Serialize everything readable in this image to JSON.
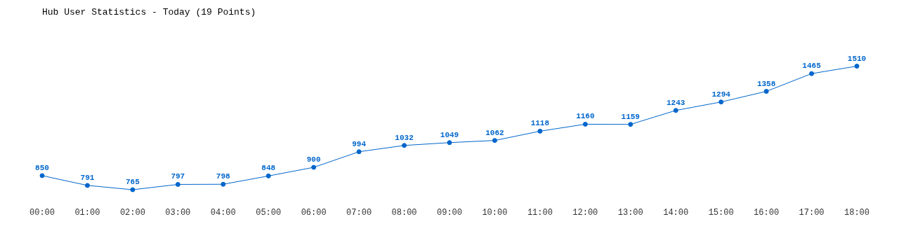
{
  "chart_data": {
    "type": "line",
    "title": "Hub User Statistics - Today (19 Points)",
    "categories": [
      "00:00",
      "01:00",
      "02:00",
      "03:00",
      "04:00",
      "05:00",
      "06:00",
      "07:00",
      "08:00",
      "09:00",
      "10:00",
      "11:00",
      "12:00",
      "13:00",
      "14:00",
      "15:00",
      "16:00",
      "17:00",
      "18:00"
    ],
    "series": [
      {
        "color": "#0066cc",
        "values": [
          850,
          791,
          765,
          797,
          798,
          848,
          900,
          994,
          1032,
          1049,
          1062,
          1118,
          1160,
          1159,
          1243,
          1294,
          1358,
          1465,
          1510
        ]
      }
    ],
    "data_labels": true,
    "marker": "circle"
  }
}
